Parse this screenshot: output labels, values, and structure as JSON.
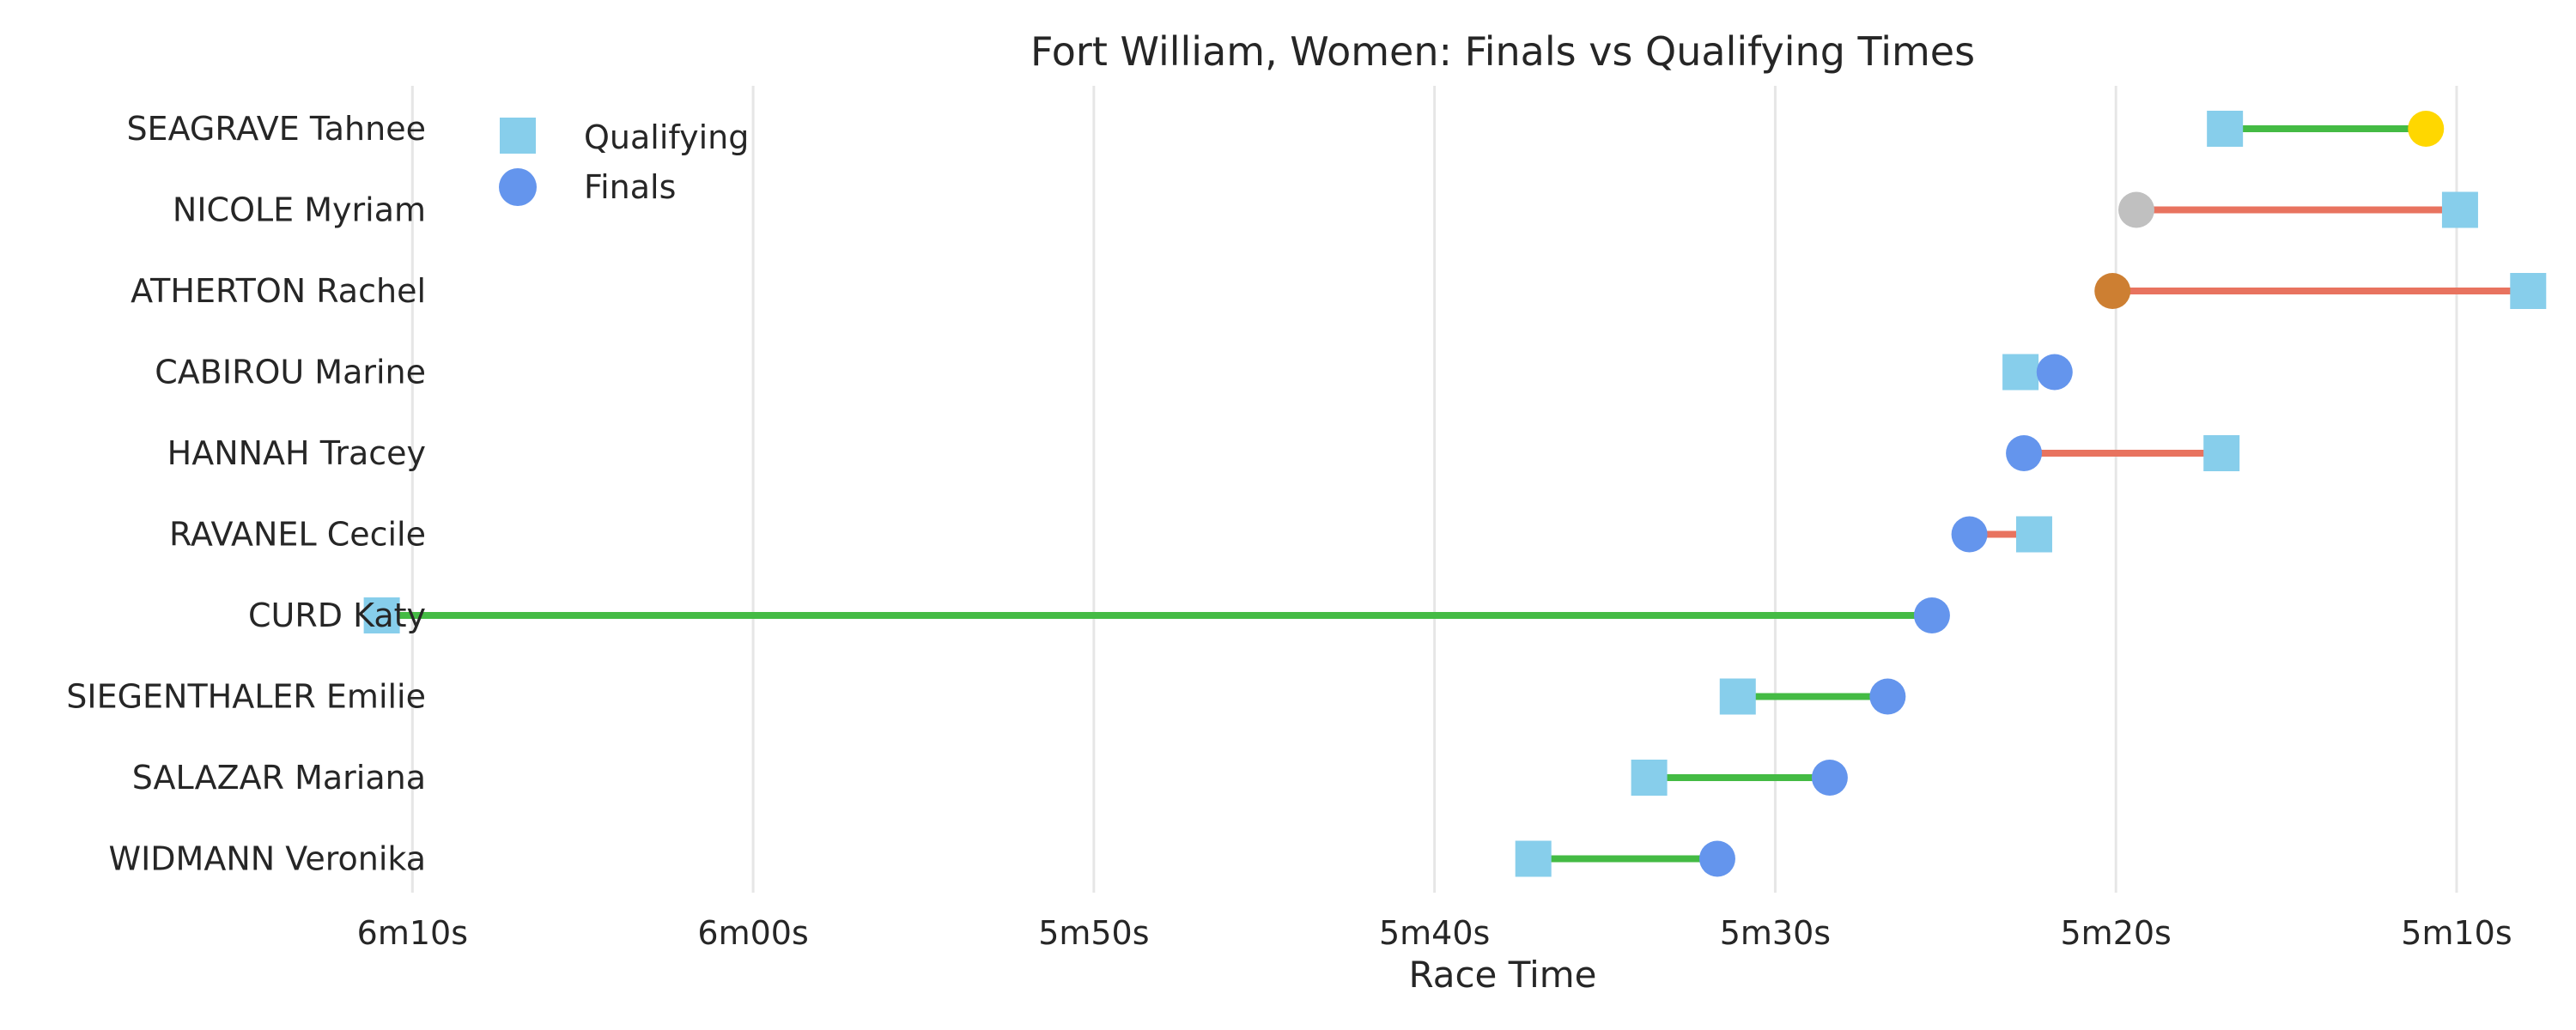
{
  "chart_data": {
    "type": "dumbbell",
    "title": "Fort William, Women: Finals vs Qualifying Times",
    "xlabel": "Race Time",
    "x_axis_reversed": true,
    "xlim": [
      369,
      307
    ],
    "ticks": [
      {
        "value": 370,
        "label": "6m10s"
      },
      {
        "value": 360,
        "label": "6m00s"
      },
      {
        "value": 350,
        "label": "5m50s"
      },
      {
        "value": 340,
        "label": "5m40s"
      },
      {
        "value": 330,
        "label": "5m30s"
      },
      {
        "value": 320,
        "label": "5m20s"
      },
      {
        "value": 310,
        "label": "5m10s"
      }
    ],
    "grid": true,
    "legend_position": "top-left",
    "legend": [
      {
        "name": "Qualifying",
        "marker": "square",
        "color": "#87ceeb"
      },
      {
        "name": "Finals",
        "marker": "circle",
        "color": "#6495ed"
      }
    ],
    "colors": {
      "qualifying": "#87ceeb",
      "finals": "#6495ed",
      "faster_in_finals": "#44bb44",
      "slower_in_finals": "#e8735f",
      "gold": "#ffd700",
      "silver": "#c0c0c0",
      "bronze": "#cd7f32"
    },
    "riders": [
      {
        "name": "SEAGRAVE Tahnee",
        "qualifying": 316.8,
        "finals": 310.9,
        "medal": "gold"
      },
      {
        "name": "NICOLE Myriam",
        "qualifying": 309.9,
        "finals": 319.4,
        "medal": "silver"
      },
      {
        "name": "ATHERTON Rachel",
        "qualifying": 307.9,
        "finals": 320.1,
        "medal": "bronze"
      },
      {
        "name": "CABIROU Marine",
        "qualifying": 322.8,
        "finals": 321.8,
        "medal": null
      },
      {
        "name": "HANNAH Tracey",
        "qualifying": 316.9,
        "finals": 322.7,
        "medal": null
      },
      {
        "name": "RAVANEL Cecile",
        "qualifying": 322.4,
        "finals": 324.3,
        "medal": null
      },
      {
        "name": "CURD Katy",
        "qualifying": 370.9,
        "finals": 325.4,
        "medal": null
      },
      {
        "name": "SIEGENTHALER Emilie",
        "qualifying": 331.1,
        "finals": 326.7,
        "medal": null
      },
      {
        "name": "SALAZAR Mariana",
        "qualifying": 333.7,
        "finals": 328.4,
        "medal": null
      },
      {
        "name": "WIDMANN Veronika",
        "qualifying": 337.1,
        "finals": 331.7,
        "medal": null
      }
    ]
  }
}
